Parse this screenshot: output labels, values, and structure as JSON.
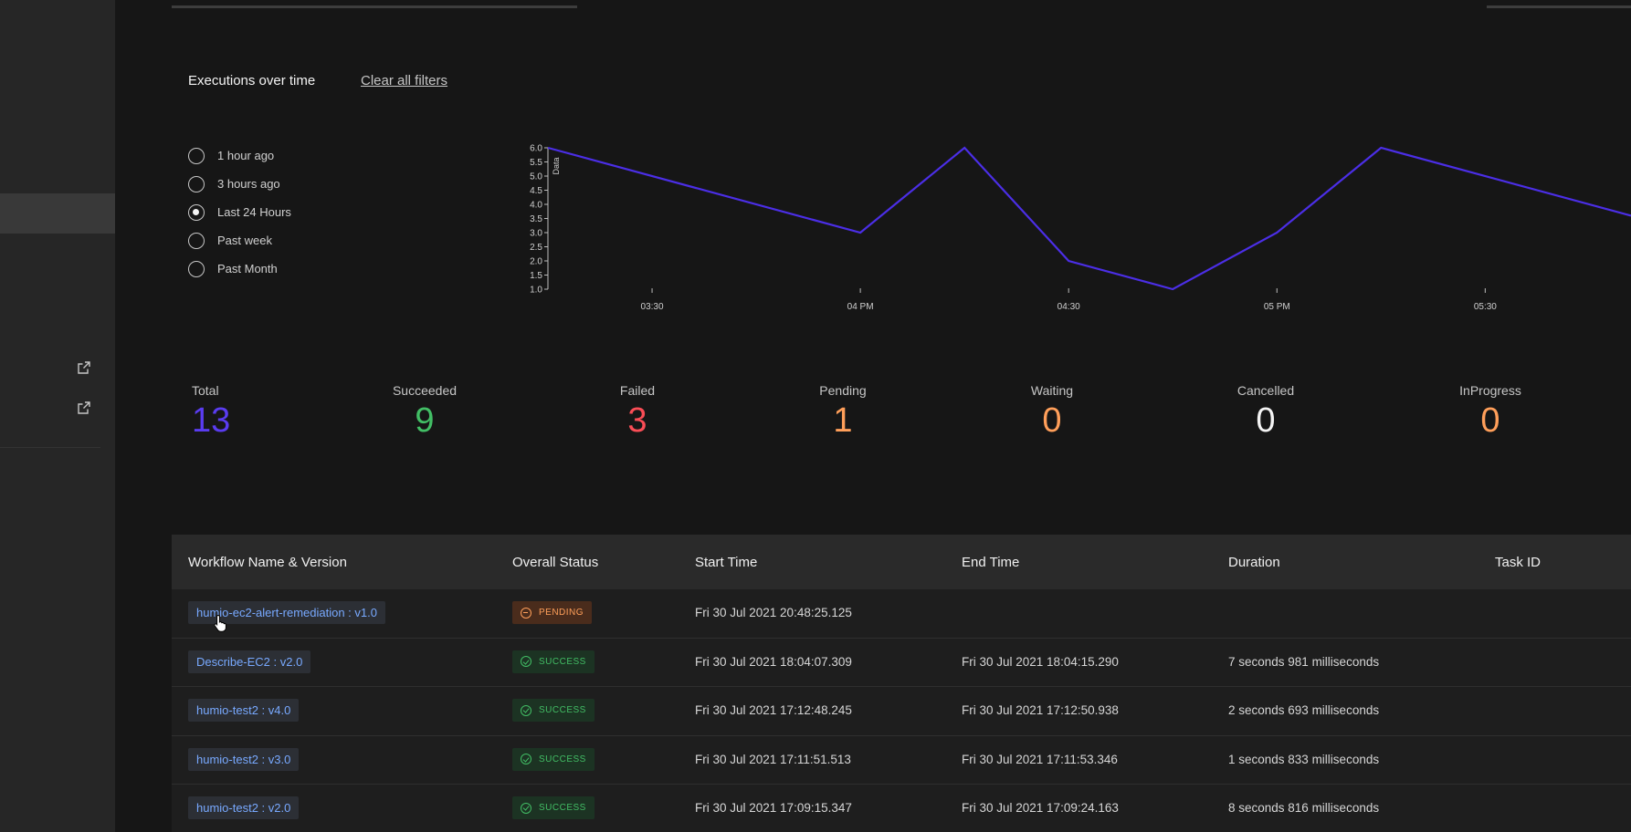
{
  "header": {
    "chart_title": "Executions over time",
    "clear_filters": "Clear all filters"
  },
  "time_filters": [
    {
      "label": "1 hour ago",
      "checked": false
    },
    {
      "label": "3 hours ago",
      "checked": false
    },
    {
      "label": "Last 24 Hours",
      "checked": true
    },
    {
      "label": "Past week",
      "checked": false
    },
    {
      "label": "Past Month",
      "checked": false
    }
  ],
  "chart_data": {
    "type": "line",
    "ylabel": "Data",
    "xlabel": "",
    "ylim": [
      1.0,
      6.0
    ],
    "y_ticks": [
      "6.0",
      "5.5",
      "5.0",
      "4.5",
      "4.0",
      "3.5",
      "3.0",
      "2.5",
      "2.0",
      "1.5",
      "1.0"
    ],
    "x_ticks": [
      "03:30",
      "04 PM",
      "04:30",
      "05 PM",
      "05:30"
    ],
    "x_tick_positions_hours": [
      15.5,
      16.0,
      16.5,
      17.0,
      17.5
    ],
    "series": [
      {
        "color": "#4b2ee6",
        "points": [
          {
            "x": 15.25,
            "y": 6.0
          },
          {
            "x": 16.0,
            "y": 3.0
          },
          {
            "x": 16.25,
            "y": 6.0
          },
          {
            "x": 16.5,
            "y": 2.0
          },
          {
            "x": 16.75,
            "y": 1.0
          },
          {
            "x": 17.0,
            "y": 3.0
          },
          {
            "x": 17.25,
            "y": 6.0
          },
          {
            "x": 17.85,
            "y": 3.6
          }
        ]
      }
    ]
  },
  "stats": [
    {
      "label": "Total",
      "value": "13",
      "color": "#5a3cf0"
    },
    {
      "label": "Succeeded",
      "value": "9",
      "color": "#42be65"
    },
    {
      "label": "Failed",
      "value": "3",
      "color": "#fa4d56"
    },
    {
      "label": "Pending",
      "value": "1",
      "color": "#ff9f5a"
    },
    {
      "label": "Waiting",
      "value": "0",
      "color": "#ff9f5a"
    },
    {
      "label": "Cancelled",
      "value": "0",
      "color": "#f4f4f4"
    },
    {
      "label": "InProgress",
      "value": "0",
      "color": "#ff9f5a"
    }
  ],
  "table": {
    "columns": [
      "Workflow Name & Version",
      "Overall Status",
      "Start Time",
      "End Time",
      "Duration",
      "Task ID"
    ],
    "rows": [
      {
        "workflow": "humio-ec2-alert-remediation : v1.0",
        "status": "PENDING",
        "status_kind": "pending",
        "start": "Fri 30 Jul 2021 20:48:25.125",
        "end": "",
        "duration": "",
        "task_id": ""
      },
      {
        "workflow": "Describe-EC2 : v2.0",
        "status": "SUCCESS",
        "status_kind": "success",
        "start": "Fri 30 Jul 2021 18:04:07.309",
        "end": "Fri 30 Jul 2021 18:04:15.290",
        "duration": "7 seconds 981 milliseconds",
        "task_id": ""
      },
      {
        "workflow": "humio-test2 : v4.0",
        "status": "SUCCESS",
        "status_kind": "success",
        "start": "Fri 30 Jul 2021 17:12:48.245",
        "end": "Fri 30 Jul 2021 17:12:50.938",
        "duration": "2 seconds 693 milliseconds",
        "task_id": ""
      },
      {
        "workflow": "humio-test2 : v3.0",
        "status": "SUCCESS",
        "status_kind": "success",
        "start": "Fri 30 Jul 2021 17:11:51.513",
        "end": "Fri 30 Jul 2021 17:11:53.346",
        "duration": "1 seconds 833 milliseconds",
        "task_id": ""
      },
      {
        "workflow": "humio-test2 : v2.0",
        "status": "SUCCESS",
        "status_kind": "success",
        "start": "Fri 30 Jul 2021 17:09:15.347",
        "end": "Fri 30 Jul 2021 17:09:24.163",
        "duration": "8 seconds 816 milliseconds",
        "task_id": ""
      }
    ]
  }
}
